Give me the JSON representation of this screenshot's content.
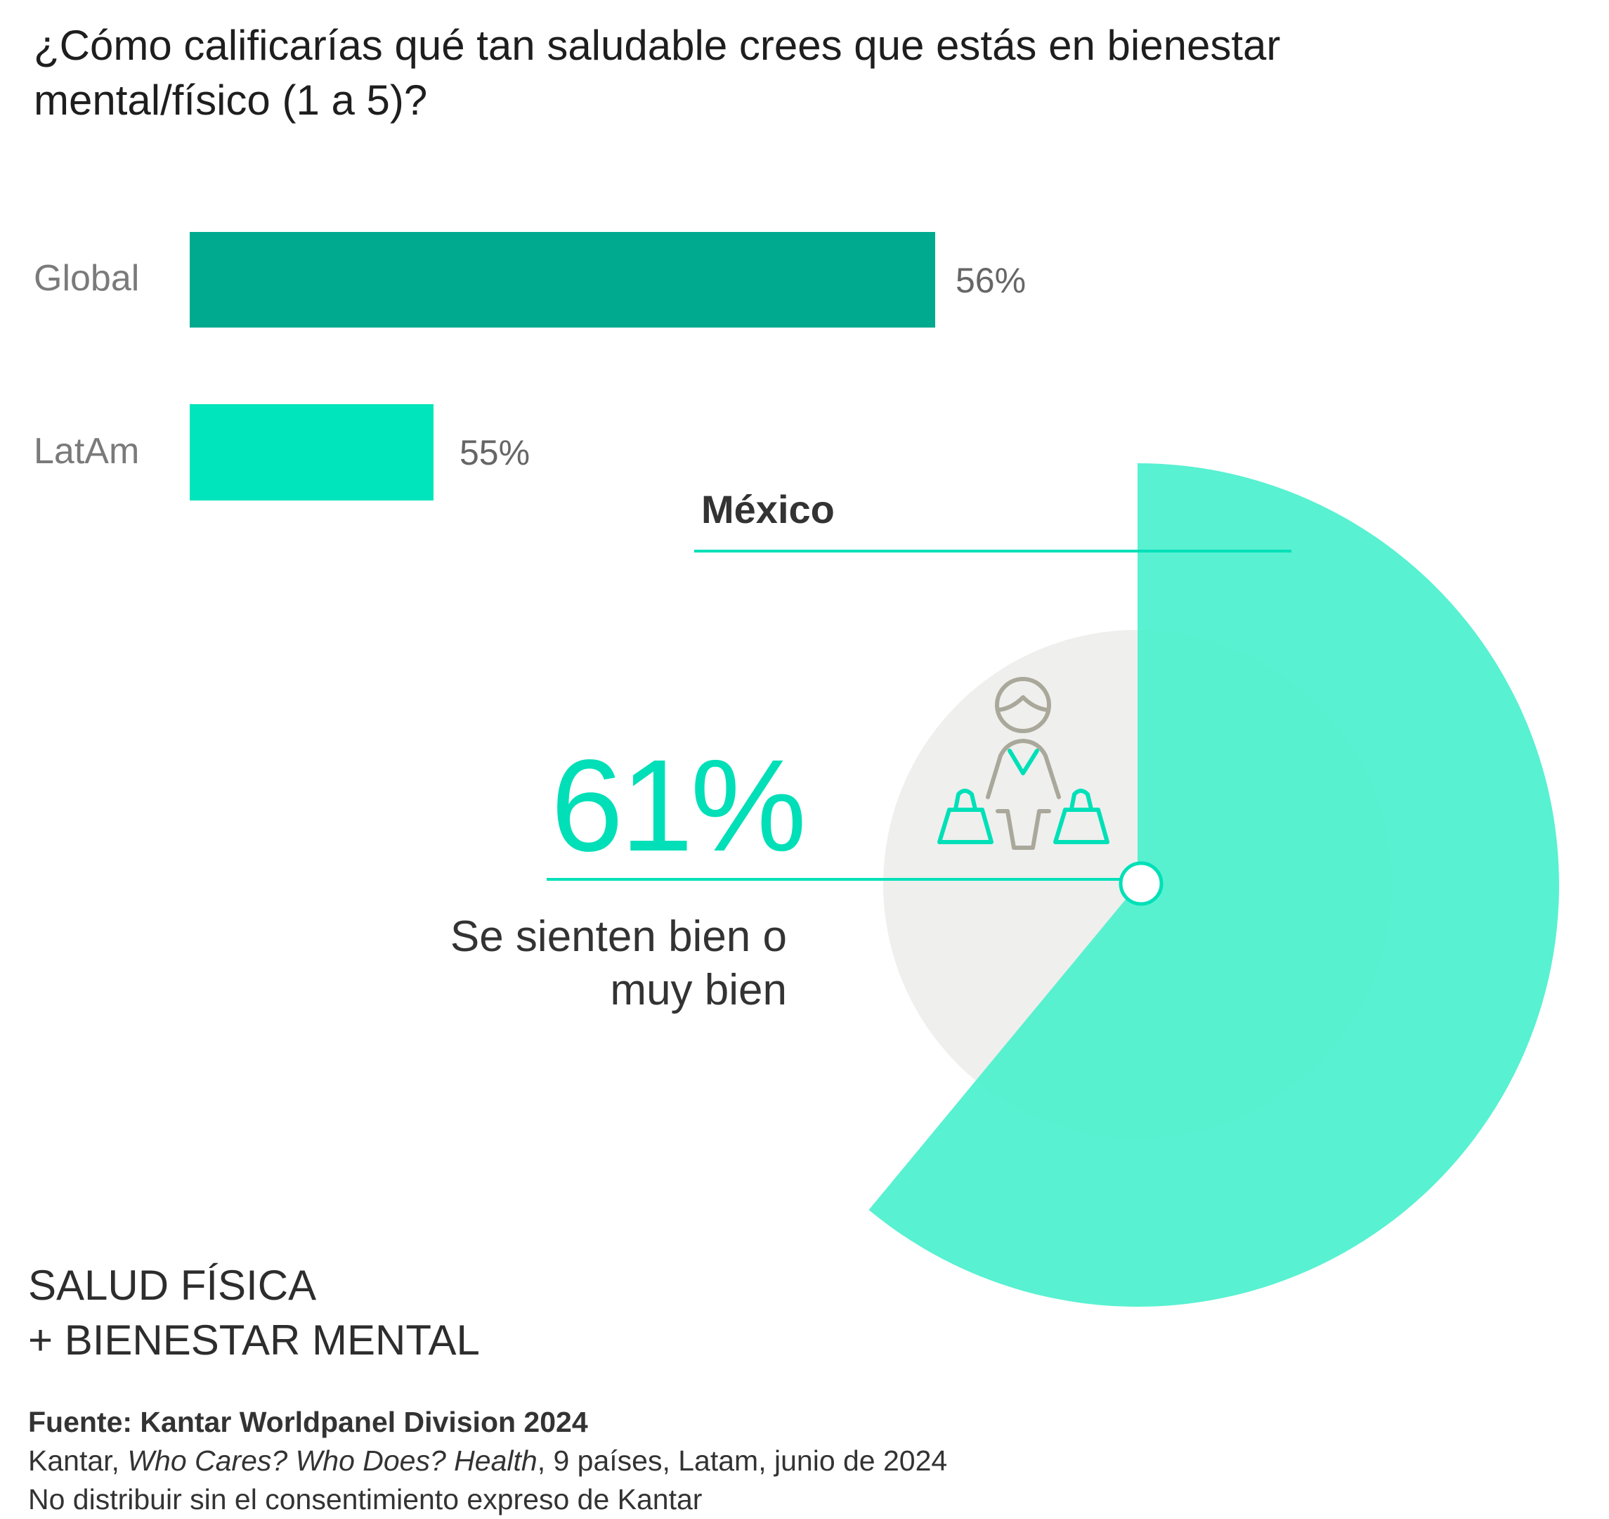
{
  "title": [
    "¿Cómo calificarías qué tan saludable crees que estás en bienestar",
    "mental/físico (1 a 5)?"
  ],
  "chart_data": [
    {
      "type": "bar",
      "orientation": "horizontal",
      "categories": [
        "Global",
        "LatAm"
      ],
      "values": [
        56,
        55
      ],
      "value_labels": [
        "56%",
        "55%"
      ],
      "colors": [
        "#00aa8e",
        "#00e5bb"
      ]
    },
    {
      "type": "pie",
      "label": "México",
      "value": 61,
      "value_label": "61%",
      "description": [
        "Se sienten bien o",
        "muy bien"
      ],
      "color": "#4ff0cf",
      "background_color": "#efefed",
      "icon": "person-with-shopping-bags-icon"
    }
  ],
  "section": [
    "SALUD FÍSICA",
    "+ BIENESTAR MENTAL"
  ],
  "footer": {
    "source": "Fuente: Kantar Worldpanel Division 2024",
    "line2_prefix": "Kantar, ",
    "line2_italic": "Who Cares? Who Does? Health",
    "line2_suffix": ", 9 países, Latam, junio de 2024",
    "line3": "No distribuir sin el consentimiento expreso de Kantar"
  }
}
